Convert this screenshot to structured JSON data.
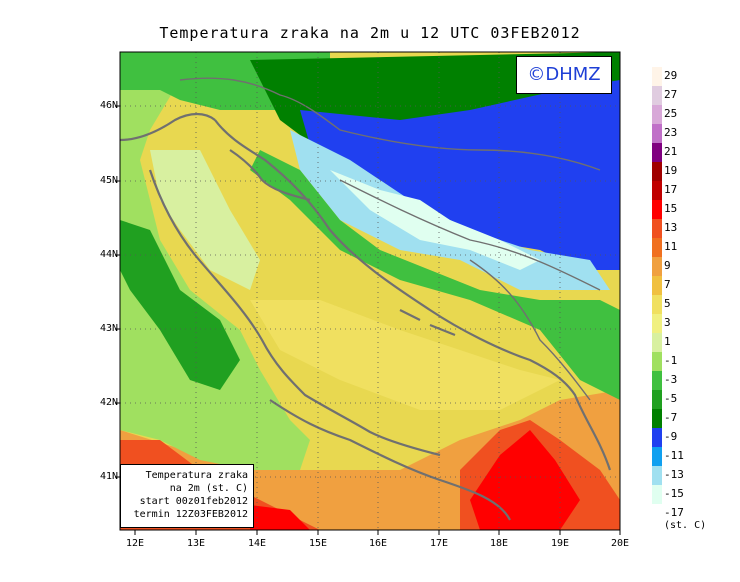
{
  "title": "Temperatura zraka na 2m u 12 UTC 03FEB2012",
  "watermark": "©DHMZ",
  "info_box": {
    "line1": "Temperatura zraka",
    "line2": "na 2m (st. C)",
    "line3": "start 00z01feb2012",
    "line4": "termin 12Z03FEB2012"
  },
  "lat_labels": [
    "46N",
    "45N",
    "44N",
    "43N",
    "42N",
    "41N"
  ],
  "lon_labels": [
    "12E",
    "13E",
    "14E",
    "15E",
    "16E",
    "17E",
    "18E",
    "19E",
    "20E"
  ],
  "legend": {
    "units": "(st. C)",
    "labels": [
      "29",
      "27",
      "25",
      "23",
      "21",
      "19",
      "17",
      "15",
      "13",
      "11",
      "9",
      "7",
      "5",
      "3",
      "1",
      "-1",
      "-3",
      "-5",
      "-7",
      "-9",
      "-11",
      "-13",
      "-15",
      "-17"
    ],
    "colors": [
      "#fff4e8",
      "#e0cce0",
      "#d8a8d8",
      "#c070c8",
      "#800080",
      "#a00000",
      "#c00000",
      "#ff0000",
      "#f05020",
      "#f07020",
      "#f0a040",
      "#f0c040",
      "#f0e060",
      "#f0f080",
      "#d8f0a0",
      "#a0e060",
      "#40c040",
      "#20a020",
      "#008000",
      "#2040f0",
      "#10a0f0",
      "#a0e0f0",
      "#e0fff0",
      "#ffffff"
    ]
  },
  "colors": {
    "sea_base": "#f0c840",
    "coastline": "#707070",
    "watermark_text": "#1e3fd6"
  }
}
